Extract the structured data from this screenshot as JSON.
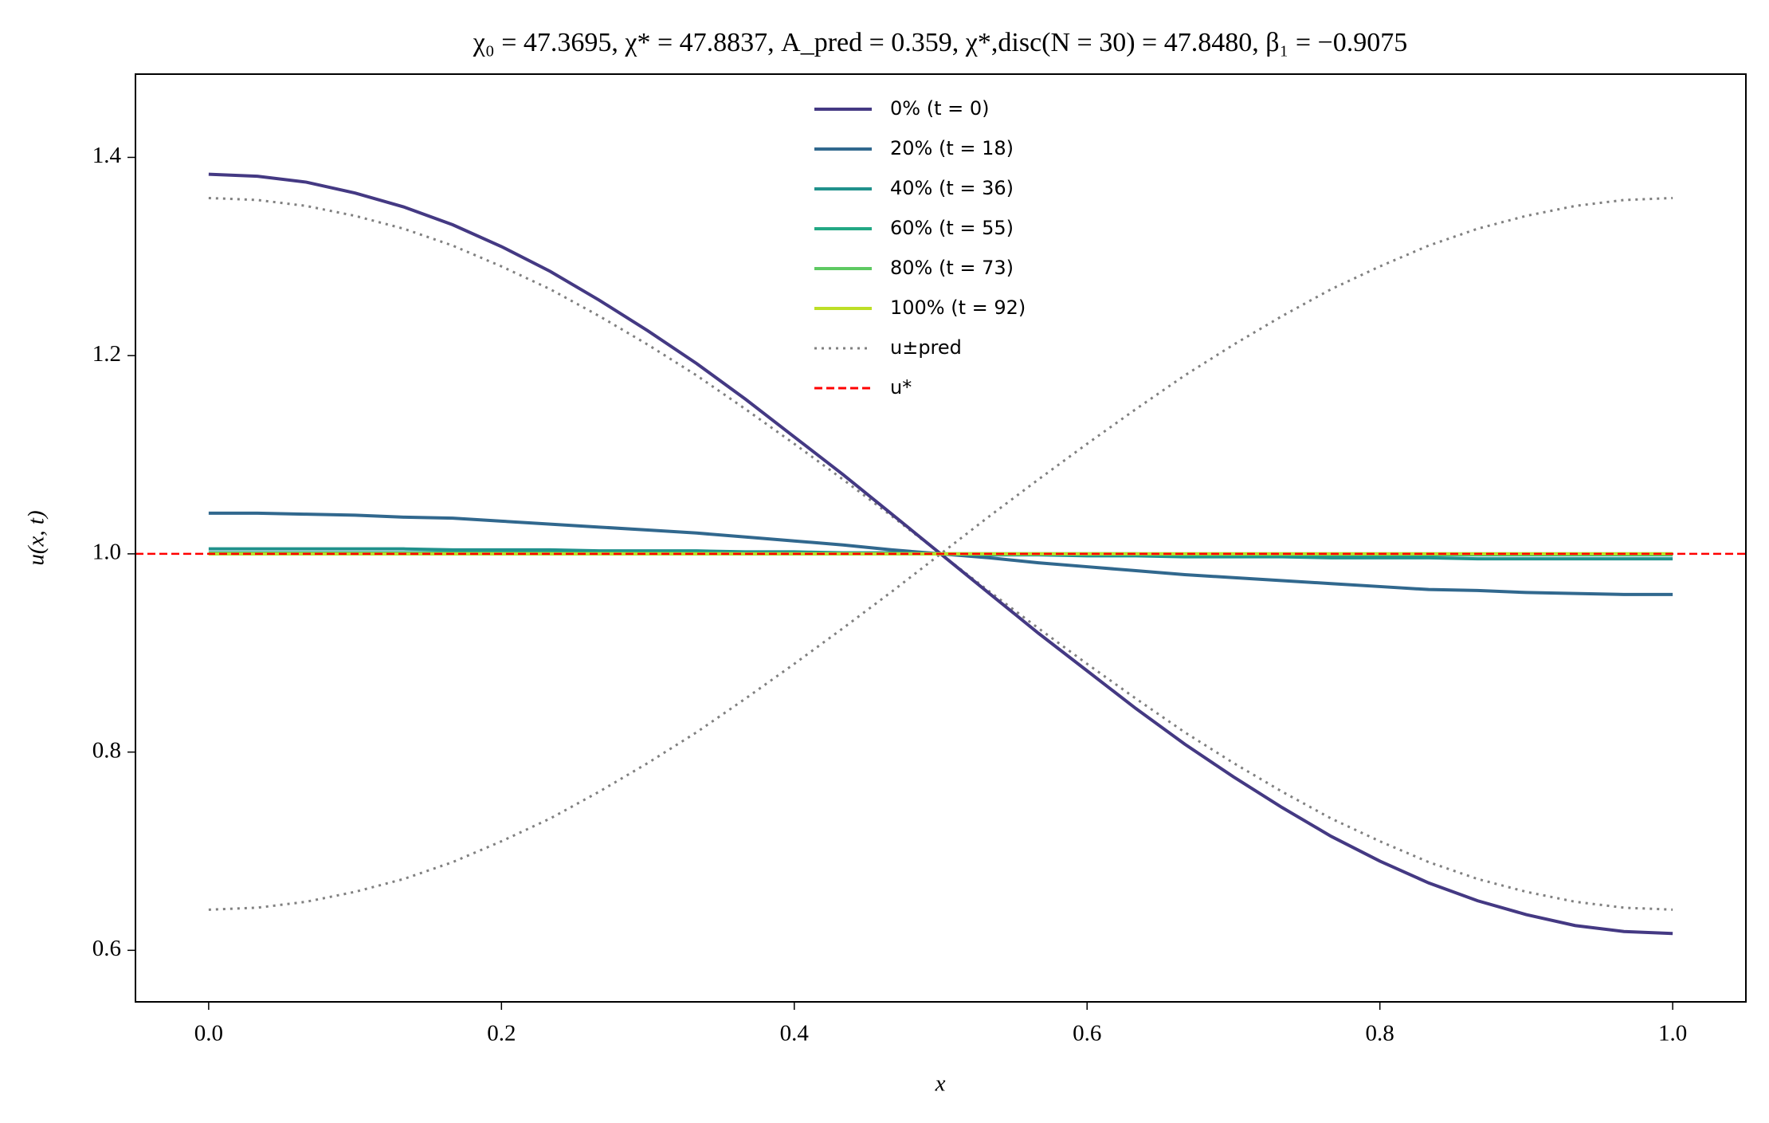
{
  "chart_data": {
    "type": "line",
    "title": "χ₀ = 47.3695,  χ* = 47.8837,  A_pred = 0.359,  χ*,disc(N = 30) = 47.8480,  β₁ = −0.9075",
    "xlabel": "x",
    "ylabel": "u(x, t)",
    "x": [
      0,
      0.0333,
      0.0667,
      0.1,
      0.1333,
      0.1667,
      0.2,
      0.2333,
      0.2667,
      0.3,
      0.3333,
      0.3667,
      0.4,
      0.4333,
      0.4667,
      0.5,
      0.5333,
      0.5667,
      0.6,
      0.6333,
      0.6667,
      0.7,
      0.7333,
      0.7667,
      0.8,
      0.8333,
      0.8667,
      0.9,
      0.9333,
      0.9667,
      1
    ],
    "series": [
      {
        "name": "0% (t = 0)",
        "color": "#443983",
        "style": "solid",
        "values": [
          1.383,
          1.381,
          1.375,
          1.364,
          1.35,
          1.332,
          1.31,
          1.285,
          1.256,
          1.225,
          1.192,
          1.156,
          1.118,
          1.08,
          1.04,
          1.0,
          0.96,
          0.92,
          0.882,
          0.844,
          0.808,
          0.775,
          0.744,
          0.715,
          0.69,
          0.668,
          0.65,
          0.636,
          0.625,
          0.619,
          0.617
        ]
      },
      {
        "name": "20% (t = 18)",
        "color": "#31688e",
        "style": "solid",
        "values": [
          1.041,
          1.041,
          1.04,
          1.039,
          1.037,
          1.036,
          1.033,
          1.03,
          1.027,
          1.024,
          1.021,
          1.017,
          1.013,
          1.009,
          1.004,
          1.0,
          0.996,
          0.991,
          0.987,
          0.983,
          0.979,
          0.976,
          0.973,
          0.97,
          0.967,
          0.964,
          0.963,
          0.961,
          0.96,
          0.959,
          0.959
        ]
      },
      {
        "name": "40% (t = 36)",
        "color": "#21918c",
        "style": "solid",
        "values": [
          1.005,
          1.005,
          1.005,
          1.005,
          1.005,
          1.004,
          1.004,
          1.004,
          1.003,
          1.003,
          1.003,
          1.002,
          1.002,
          1.001,
          1.001,
          1.0,
          0.999,
          0.999,
          0.998,
          0.998,
          0.997,
          0.997,
          0.997,
          0.996,
          0.996,
          0.996,
          0.995,
          0.995,
          0.995,
          0.995,
          0.995
        ]
      },
      {
        "name": "60% (t = 55)",
        "color": "#22a884",
        "style": "solid",
        "values": [
          1.001,
          1.001,
          1.001,
          1.001,
          1.001,
          1.001,
          1.001,
          1.001,
          1.001,
          1.001,
          1.001,
          1,
          1,
          1,
          1,
          1,
          1,
          1,
          1,
          1,
          0.999,
          0.999,
          0.999,
          0.999,
          0.999,
          0.999,
          0.999,
          0.999,
          0.999,
          0.999,
          0.999
        ]
      },
      {
        "name": "80% (t = 73)",
        "color": "#5ec962",
        "style": "solid",
        "values": [
          1,
          1,
          1,
          1,
          1,
          1,
          1,
          1,
          1,
          1,
          1,
          1,
          1,
          1,
          1,
          1,
          1,
          1,
          1,
          1,
          1,
          1,
          1,
          1,
          1,
          1,
          1,
          1,
          1,
          1,
          1
        ]
      },
      {
        "name": "100% (t = 92)",
        "color": "#bddf26",
        "style": "solid",
        "values": [
          1,
          1,
          1,
          1,
          1,
          1,
          1,
          1,
          1,
          1,
          1,
          1,
          1,
          1,
          1,
          1,
          1,
          1,
          1,
          1,
          1,
          1,
          1,
          1,
          1,
          1,
          1,
          1,
          1,
          1,
          1
        ]
      },
      {
        "name": "u±pred",
        "color": "#808080",
        "style": "dotted",
        "values": [
          1.359,
          1.357,
          1.351,
          1.341,
          1.328,
          1.311,
          1.29,
          1.267,
          1.24,
          1.211,
          1.18,
          1.146,
          1.111,
          1.075,
          1.038,
          1.0,
          0.962,
          0.925,
          0.889,
          0.854,
          0.82,
          0.789,
          0.76,
          0.733,
          0.71,
          0.689,
          0.672,
          0.659,
          0.649,
          0.643,
          0.641
        ]
      },
      {
        "color": "#808080",
        "style": "dotted",
        "values": [
          0.641,
          0.643,
          0.649,
          0.659,
          0.672,
          0.689,
          0.71,
          0.733,
          0.76,
          0.789,
          0.82,
          0.854,
          0.889,
          0.925,
          0.962,
          1.0,
          1.038,
          1.075,
          1.111,
          1.146,
          1.18,
          1.211,
          1.24,
          1.267,
          1.29,
          1.311,
          1.328,
          1.341,
          1.351,
          1.357,
          1.359
        ]
      }
    ],
    "hlines": [
      {
        "name": "u*",
        "value": 1,
        "color": "#ff0000",
        "style": "dashed"
      }
    ],
    "xlim": [
      -0.05,
      1.05
    ],
    "ylim": [
      0.548,
      1.484
    ],
    "xticks": [
      {
        "value": 0,
        "label": "0.0"
      },
      0.2,
      0.4,
      0.6,
      0.8,
      {
        "value": 1,
        "label": "1.0"
      }
    ],
    "yticks": [
      0.6,
      0.8,
      {
        "value": 1,
        "label": "1.0"
      },
      1.2,
      1.4
    ],
    "legend": "upper center",
    "grid": false
  }
}
